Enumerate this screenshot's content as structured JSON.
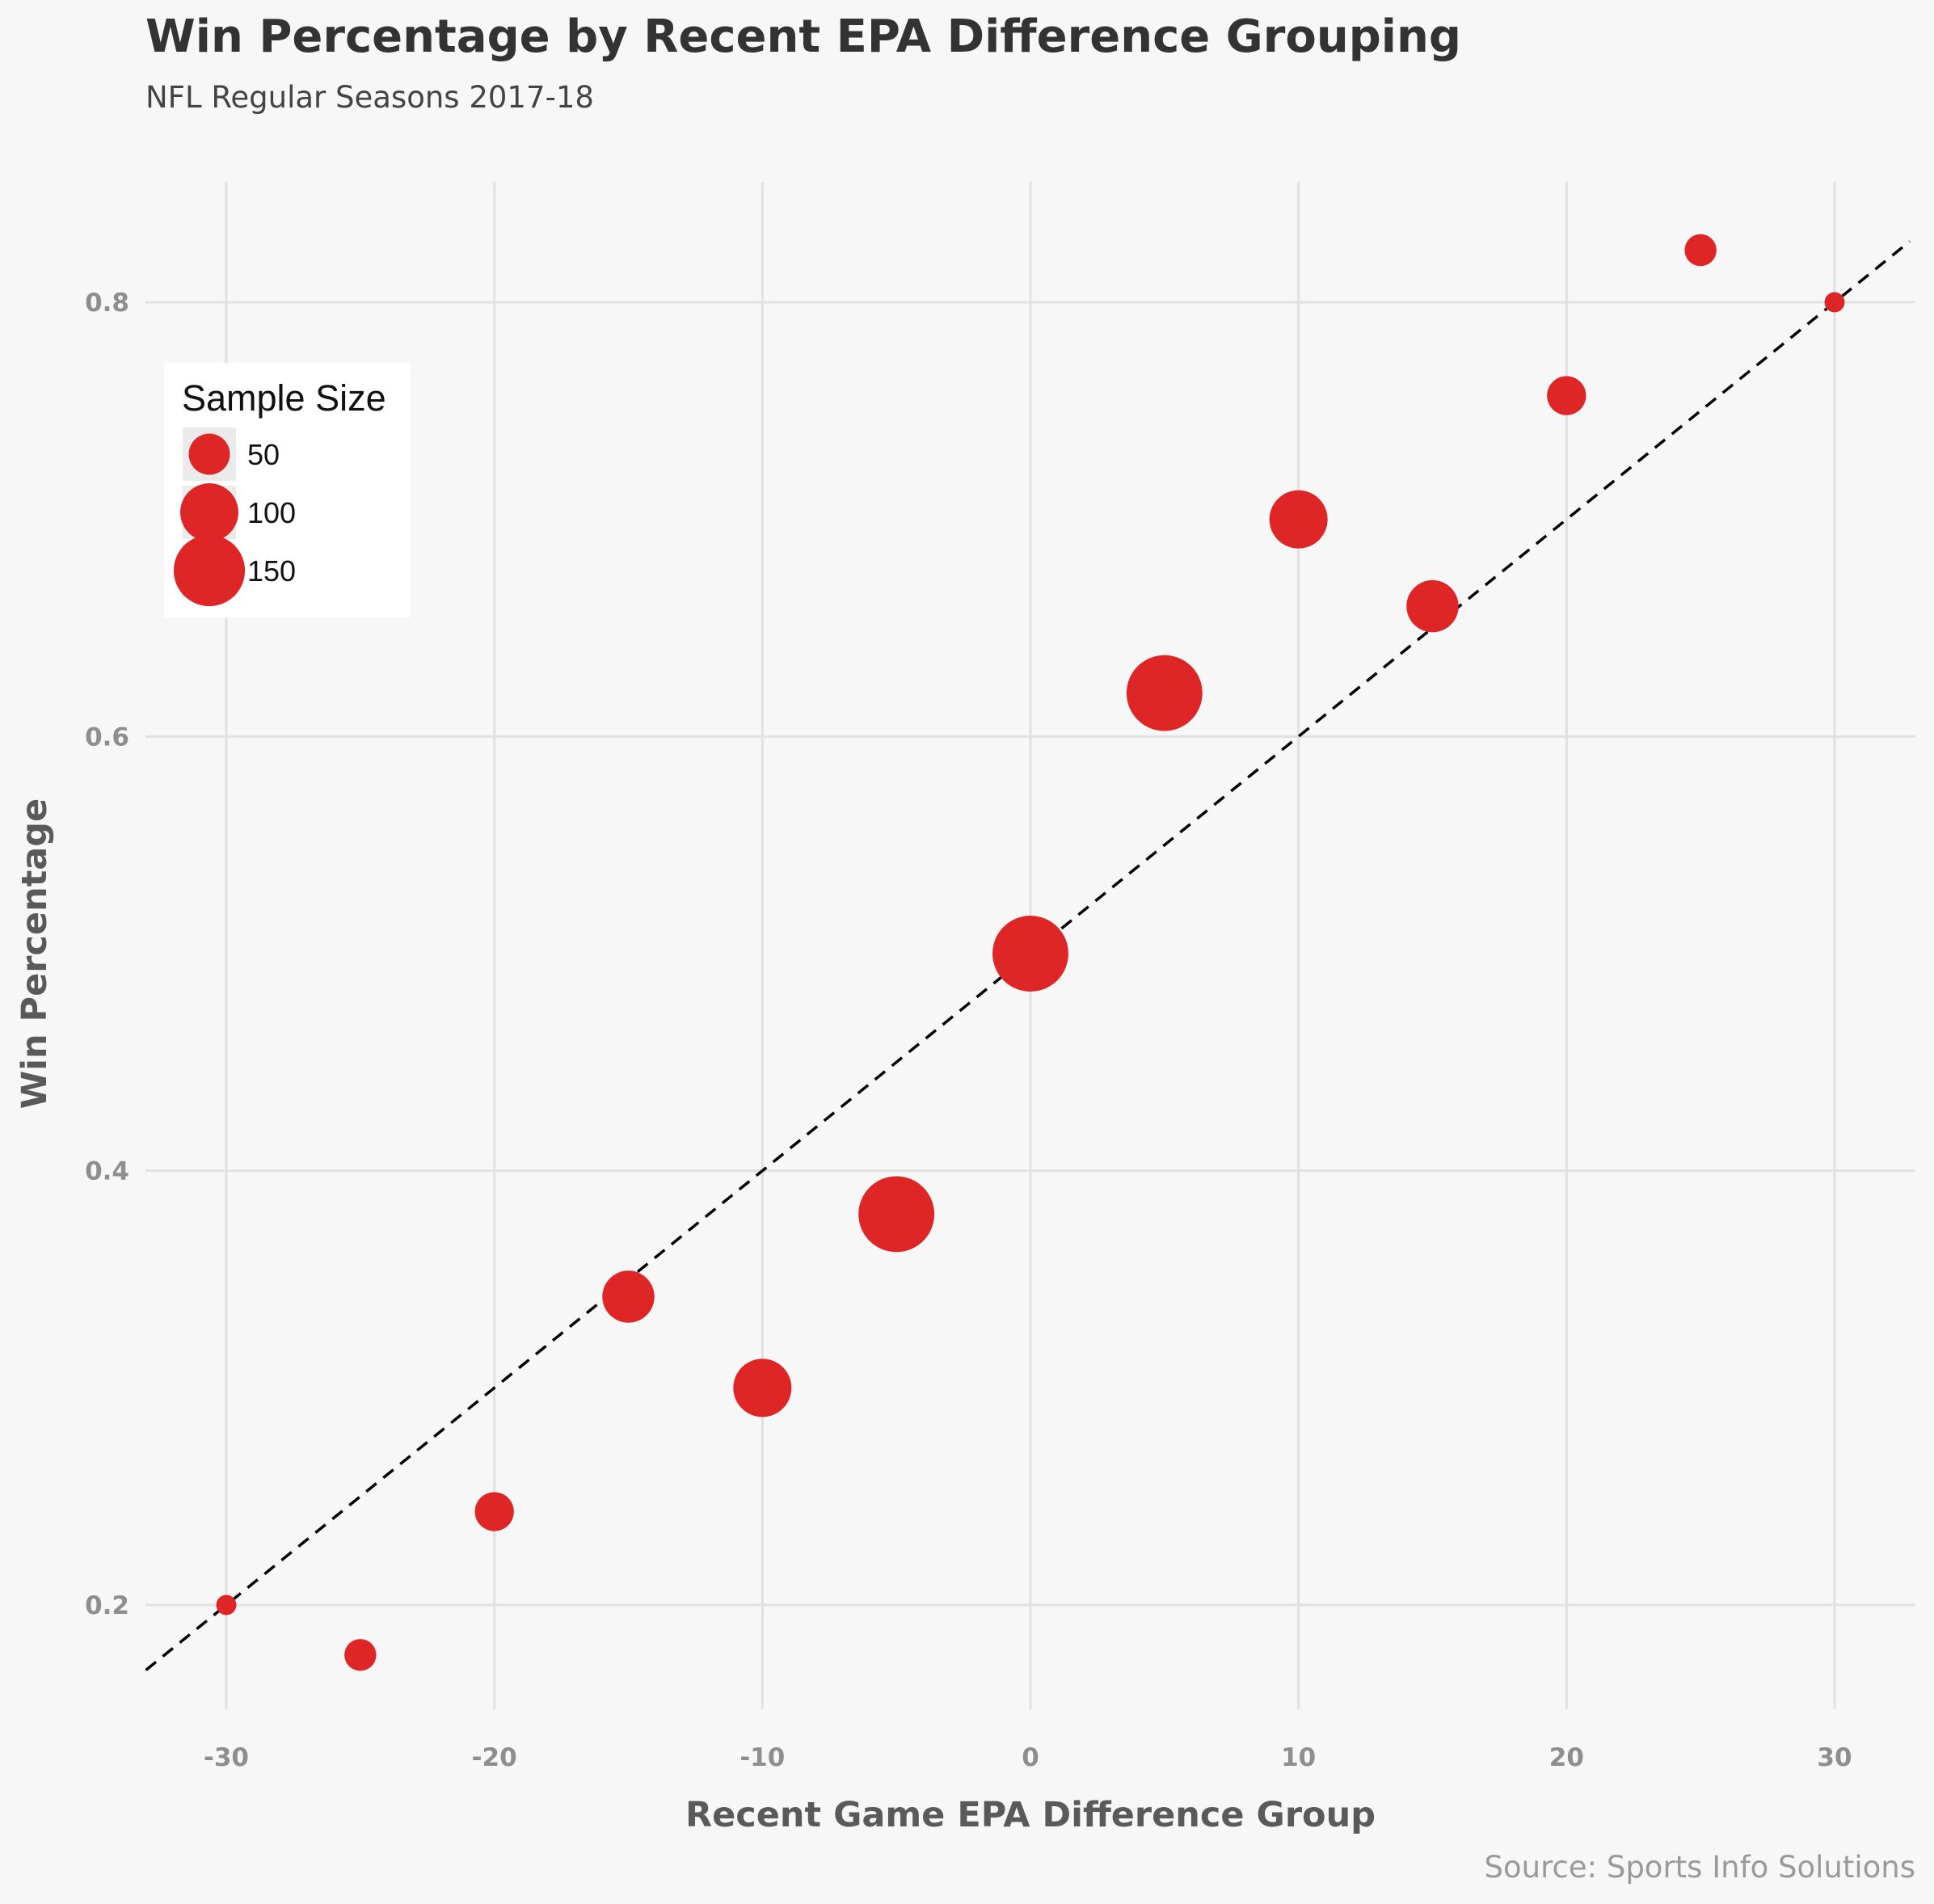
{
  "chart_data": {
    "type": "scatter",
    "title": "Win Percentage by Recent EPA Difference Grouping",
    "subtitle": "NFL Regular Seasons 2017-18",
    "xlabel": "Recent Game EPA Difference Group",
    "ylabel": "Win Percentage",
    "caption": "Source: Sports Info Solutions",
    "xlim": [
      -33,
      33
    ],
    "ylim": [
      0.17,
      0.86
    ],
    "x_ticks": [
      -30,
      -20,
      -10,
      0,
      10,
      20,
      30
    ],
    "x_tick_labels": [
      "-30",
      "-20",
      "-10",
      "0",
      "10",
      "20",
      "30"
    ],
    "y_ticks": [
      0.2,
      0.4,
      0.6,
      0.8
    ],
    "y_tick_labels": [
      "0.2",
      "0.4",
      "0.6",
      "0.8"
    ],
    "grid": true,
    "point_color": "#de2626",
    "points": [
      {
        "x": -30,
        "y": 0.2,
        "size": 12
      },
      {
        "x": -25,
        "y": 0.177,
        "size": 30
      },
      {
        "x": -20,
        "y": 0.243,
        "size": 45
      },
      {
        "x": -15,
        "y": 0.342,
        "size": 80
      },
      {
        "x": -10,
        "y": 0.3,
        "size": 100
      },
      {
        "x": -5,
        "y": 0.38,
        "size": 170
      },
      {
        "x": 0,
        "y": 0.5,
        "size": 170
      },
      {
        "x": 5,
        "y": 0.62,
        "size": 170
      },
      {
        "x": 10,
        "y": 0.7,
        "size": 100
      },
      {
        "x": 15,
        "y": 0.66,
        "size": 80
      },
      {
        "x": 20,
        "y": 0.757,
        "size": 45
      },
      {
        "x": 25,
        "y": 0.824,
        "size": 30
      },
      {
        "x": 30,
        "y": 0.8,
        "size": 12
      }
    ],
    "reference_line": {
      "style": "dashed",
      "color": "#000000",
      "intercept": 0.5,
      "slope": 0.01
    },
    "legend": {
      "title": "Sample Size",
      "placement": "top-left",
      "entries": [
        {
          "label": "50",
          "size": 50
        },
        {
          "label": "100",
          "size": 100
        },
        {
          "label": "150",
          "size": 150
        }
      ]
    }
  }
}
